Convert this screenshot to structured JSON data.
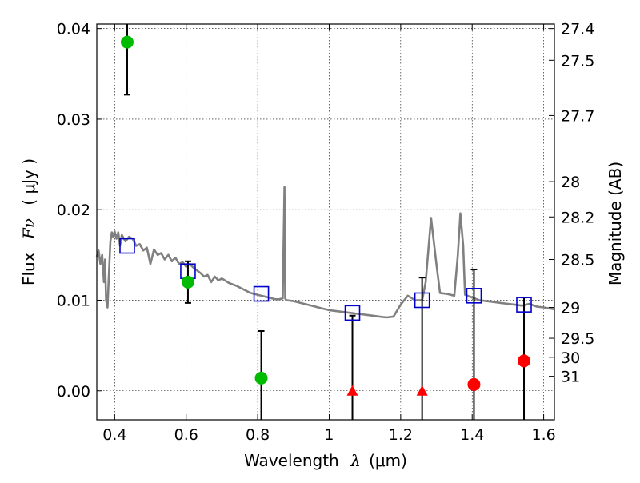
{
  "chart_data": {
    "type": "scatter",
    "xlabel_text": "Wavelength",
    "xlabel_symbol": "λ",
    "xlabel_unit": "(μm)",
    "ylabel_text": "Flux",
    "ylabel_symbol": "Fν",
    "ylabel_unit": "( μJy )",
    "y2label": "Magnitude (AB)",
    "xlim": [
      0.35,
      1.63
    ],
    "ylim": [
      -0.0032,
      0.0405
    ],
    "grid": true,
    "x_ticks": [
      {
        "v": 0.4,
        "label": "0.4"
      },
      {
        "v": 0.6,
        "label": "0.6"
      },
      {
        "v": 0.8,
        "label": "0.8"
      },
      {
        "v": 1.0,
        "label": "1"
      },
      {
        "v": 1.2,
        "label": "1.2"
      },
      {
        "v": 1.4,
        "label": "1.4"
      },
      {
        "v": 1.6,
        "label": "1.6"
      }
    ],
    "y_ticks": [
      {
        "v": 0.0,
        "label": "0.00"
      },
      {
        "v": 0.01,
        "label": "0.01"
      },
      {
        "v": 0.02,
        "label": "0.02"
      },
      {
        "v": 0.03,
        "label": "0.03"
      },
      {
        "v": 0.04,
        "label": "0.04"
      }
    ],
    "mag_ticks": [
      {
        "label": "27.4",
        "flux": 0.04
      },
      {
        "label": "27.5",
        "flux": 0.0365
      },
      {
        "label": "27.7",
        "flux": 0.0304
      },
      {
        "label": "28",
        "flux": 0.0231
      },
      {
        "label": "28.2",
        "flux": 0.0192
      },
      {
        "label": "28.5",
        "flux": 0.0145
      },
      {
        "label": "29",
        "flux": 0.0092
      },
      {
        "label": "29.5",
        "flux": 0.0058
      },
      {
        "label": "30",
        "flux": 0.0037
      },
      {
        "label": "31",
        "flux": 0.0016
      }
    ],
    "model_spectrum": {
      "color": "#808080",
      "points": [
        [
          0.35,
          0.0148
        ],
        [
          0.355,
          0.0155
        ],
        [
          0.36,
          0.014
        ],
        [
          0.365,
          0.015
        ],
        [
          0.37,
          0.012
        ],
        [
          0.373,
          0.0145
        ],
        [
          0.376,
          0.01
        ],
        [
          0.38,
          0.0092
        ],
        [
          0.384,
          0.013
        ],
        [
          0.388,
          0.0165
        ],
        [
          0.392,
          0.0175
        ],
        [
          0.396,
          0.017
        ],
        [
          0.4,
          0.0176
        ],
        [
          0.405,
          0.0168
        ],
        [
          0.41,
          0.0175
        ],
        [
          0.415,
          0.016
        ],
        [
          0.42,
          0.0172
        ],
        [
          0.43,
          0.0165
        ],
        [
          0.44,
          0.017
        ],
        [
          0.45,
          0.0168
        ],
        [
          0.46,
          0.016
        ],
        [
          0.47,
          0.0162
        ],
        [
          0.48,
          0.0155
        ],
        [
          0.49,
          0.0158
        ],
        [
          0.5,
          0.014
        ],
        [
          0.51,
          0.0156
        ],
        [
          0.52,
          0.015
        ],
        [
          0.53,
          0.0152
        ],
        [
          0.54,
          0.0145
        ],
        [
          0.55,
          0.015
        ],
        [
          0.56,
          0.0143
        ],
        [
          0.57,
          0.0147
        ],
        [
          0.58,
          0.014
        ],
        [
          0.59,
          0.0142
        ],
        [
          0.6,
          0.0137
        ],
        [
          0.61,
          0.014
        ],
        [
          0.62,
          0.0136
        ],
        [
          0.63,
          0.0133
        ],
        [
          0.64,
          0.013
        ],
        [
          0.65,
          0.0126
        ],
        [
          0.66,
          0.0128
        ],
        [
          0.67,
          0.012
        ],
        [
          0.68,
          0.0126
        ],
        [
          0.69,
          0.0122
        ],
        [
          0.7,
          0.0124
        ],
        [
          0.72,
          0.0119
        ],
        [
          0.74,
          0.0116
        ],
        [
          0.76,
          0.0112
        ],
        [
          0.78,
          0.0108
        ],
        [
          0.8,
          0.0106
        ],
        [
          0.82,
          0.0104
        ],
        [
          0.84,
          0.0102
        ],
        [
          0.85,
          0.0101
        ],
        [
          0.86,
          0.0101
        ],
        [
          0.87,
          0.0102
        ],
        [
          0.875,
          0.0225
        ],
        [
          0.877,
          0.0102
        ],
        [
          0.88,
          0.01
        ],
        [
          0.9,
          0.0099
        ],
        [
          0.92,
          0.0097
        ],
        [
          0.94,
          0.0095
        ],
        [
          0.96,
          0.0093
        ],
        [
          0.98,
          0.0091
        ],
        [
          1.0,
          0.0089
        ],
        [
          1.02,
          0.0088
        ],
        [
          1.04,
          0.0087
        ],
        [
          1.06,
          0.0086
        ],
        [
          1.08,
          0.0085
        ],
        [
          1.1,
          0.0084
        ],
        [
          1.12,
          0.0083
        ],
        [
          1.14,
          0.0082
        ],
        [
          1.16,
          0.0081
        ],
        [
          1.18,
          0.0082
        ],
        [
          1.2,
          0.0095
        ],
        [
          1.22,
          0.0105
        ],
        [
          1.24,
          0.01
        ],
        [
          1.26,
          0.01
        ],
        [
          1.27,
          0.012
        ],
        [
          1.285,
          0.0191
        ],
        [
          1.3,
          0.014
        ],
        [
          1.31,
          0.0108
        ],
        [
          1.33,
          0.0107
        ],
        [
          1.35,
          0.0105
        ],
        [
          1.36,
          0.015
        ],
        [
          1.367,
          0.0196
        ],
        [
          1.375,
          0.016
        ],
        [
          1.38,
          0.0106
        ],
        [
          1.4,
          0.0103
        ],
        [
          1.42,
          0.01
        ],
        [
          1.44,
          0.0099
        ],
        [
          1.46,
          0.0098
        ],
        [
          1.48,
          0.0097
        ],
        [
          1.5,
          0.0096
        ],
        [
          1.52,
          0.0095
        ],
        [
          1.54,
          0.0094
        ],
        [
          1.56,
          0.0096
        ],
        [
          1.58,
          0.0093
        ],
        [
          1.6,
          0.0092
        ],
        [
          1.63,
          0.009
        ]
      ]
    },
    "model_photometry": {
      "marker": "open-square",
      "color": "#0000cc",
      "points": [
        [
          0.435,
          0.016
        ],
        [
          0.605,
          0.0132
        ],
        [
          0.81,
          0.0107
        ],
        [
          1.065,
          0.0086
        ],
        [
          1.26,
          0.01
        ],
        [
          1.405,
          0.0105
        ],
        [
          1.545,
          0.0095
        ]
      ]
    },
    "detections": {
      "marker": "filled-circle",
      "color": "#00bb00",
      "points": [
        {
          "x": 0.435,
          "y": 0.0385,
          "ylo": 0.0327,
          "yhi": 0.0405
        },
        {
          "x": 0.605,
          "y": 0.012,
          "ylo": 0.0097,
          "yhi": 0.0143
        },
        {
          "x": 0.81,
          "y": 0.0014,
          "ylo": -0.0032,
          "yhi": 0.0066
        }
      ]
    },
    "non_detections": {
      "marker": "filled-circle",
      "color": "#ff0000",
      "points": [
        {
          "x": 1.405,
          "y": 0.0007,
          "ylo": -0.0032,
          "yhi": 0.0134
        },
        {
          "x": 1.545,
          "y": 0.0033,
          "ylo": -0.0032,
          "yhi": 0.0103
        }
      ]
    },
    "upper_limits": {
      "marker": "filled-triangle",
      "color": "#ff0000",
      "points": [
        {
          "x": 1.065,
          "y": 0.0,
          "ylo": -0.0032,
          "yhi": 0.0083
        },
        {
          "x": 1.26,
          "y": 0.0,
          "ylo": -0.0032,
          "yhi": 0.0125
        }
      ]
    }
  }
}
